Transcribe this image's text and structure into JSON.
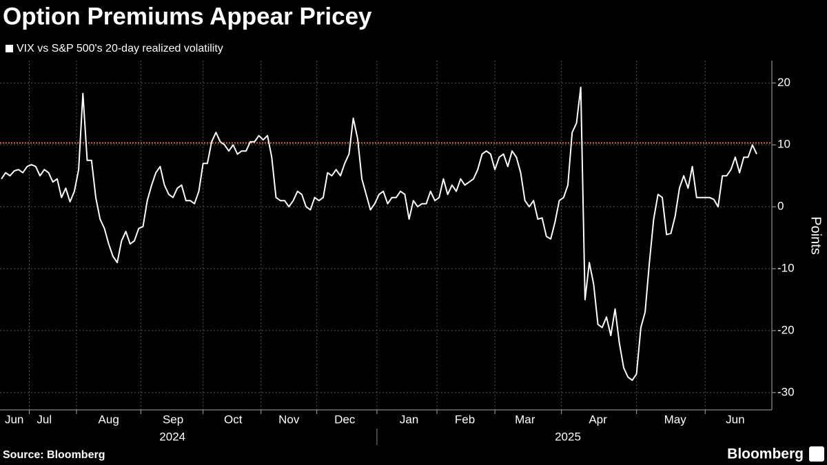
{
  "chart_data": {
    "type": "line",
    "title": "Option Premiums Appear Pricey",
    "y_label": "Points",
    "source": "Source: Bloomberg",
    "brand": "Bloomberg",
    "years": [
      "2024",
      "2025"
    ],
    "ylim": [
      -32.8,
      23.6
    ],
    "yticks": [
      -30,
      -20,
      -10,
      0,
      10,
      20
    ],
    "grid": true,
    "reference_line": 10.3,
    "reference_color": "#e8703a",
    "categories": [
      null,
      null,
      null,
      "Jun",
      null,
      null,
      null,
      null,
      null,
      null,
      "Jul",
      null,
      null,
      null,
      null,
      null,
      null,
      null,
      null,
      null,
      null,
      null,
      null,
      null,
      null,
      "Aug",
      null,
      null,
      null,
      null,
      null,
      null,
      null,
      null,
      null,
      null,
      null,
      null,
      null,
      null,
      "Sep",
      null,
      null,
      null,
      null,
      null,
      null,
      null,
      null,
      null,
      null,
      null,
      null,
      null,
      "Oct",
      null,
      null,
      null,
      null,
      null,
      null,
      null,
      null,
      null,
      null,
      null,
      null,
      "Nov",
      null,
      null,
      null,
      null,
      null,
      null,
      null,
      null,
      null,
      null,
      null,
      null,
      "Dec",
      null,
      null,
      null,
      null,
      null,
      null,
      null,
      null,
      null,
      null,
      null,
      null,
      null,
      null,
      "Jan",
      null,
      null,
      null,
      null,
      null,
      null,
      null,
      null,
      null,
      null,
      null,
      null,
      "Feb",
      null,
      null,
      null,
      null,
      null,
      null,
      null,
      null,
      null,
      null,
      null,
      null,
      null,
      "Mar",
      null,
      null,
      null,
      null,
      null,
      null,
      null,
      null,
      null,
      null,
      null,
      null,
      null,
      null,
      null,
      null,
      "Apr",
      null,
      null,
      null,
      null,
      null,
      null,
      null,
      null,
      null,
      null,
      null,
      null,
      null,
      null,
      null,
      null,
      null,
      "May",
      null,
      null,
      null,
      null,
      null,
      null,
      null,
      null,
      null,
      null,
      null,
      null,
      null,
      "Jun",
      null,
      null,
      null,
      null,
      null
    ],
    "series": [
      {
        "name": "VIX vs S&P 500's 20-day realized volatility",
        "color": "#ffffff",
        "values": [
          4.5,
          5.5,
          5,
          5.8,
          6,
          5.5,
          6.5,
          6.8,
          6.5,
          5,
          6,
          5.5,
          4,
          4.5,
          1.5,
          3,
          0.8,
          2.5,
          6,
          18.3,
          7.5,
          7.5,
          1.5,
          -2,
          -3.5,
          -6,
          -8,
          -9,
          -5.5,
          -4,
          -6,
          -5.5,
          -3.5,
          -3.2,
          1,
          3.5,
          5.5,
          6.5,
          3.5,
          2,
          1.5,
          3,
          3.5,
          1,
          1,
          0.5,
          2.5,
          7,
          7,
          10.5,
          12,
          10.5,
          10,
          9,
          10,
          8.5,
          9,
          9,
          10.5,
          10.5,
          11.5,
          10.8,
          11.5,
          8,
          1.5,
          1,
          1,
          0,
          1,
          2.5,
          2,
          0,
          -0.5,
          1.5,
          1,
          1.5,
          5.5,
          5,
          6,
          5,
          7,
          8.5,
          14.3,
          11,
          4.5,
          2,
          -0.5,
          0.5,
          2,
          2.5,
          0.5,
          1.5,
          1.5,
          2.5,
          2,
          -2,
          1,
          0,
          0.5,
          0.5,
          2.5,
          1,
          1.5,
          4.5,
          2,
          3.5,
          2.5,
          4.5,
          3.5,
          4,
          4.5,
          6,
          8.5,
          9,
          8.5,
          6,
          8,
          8.5,
          6.5,
          9,
          8,
          5.5,
          1,
          0,
          1,
          -2,
          -1.8,
          -4.8,
          -5.2,
          -2.5,
          1,
          1.5,
          3.5,
          12,
          13.5,
          19.3,
          -15,
          -9,
          -12.5,
          -19,
          -19.5,
          -17.8,
          -20.8,
          -16.5,
          -22,
          -26,
          -27.5,
          -28,
          -27,
          -19.5,
          -17,
          -9,
          -2,
          2,
          1.5,
          -4.5,
          -4.3,
          -1.5,
          3,
          5,
          3,
          6.5,
          1.5,
          1.5,
          1.5,
          1.5,
          1.2,
          0,
          5,
          5,
          6,
          8,
          5.5,
          8,
          8,
          10,
          8.5
        ]
      }
    ]
  }
}
